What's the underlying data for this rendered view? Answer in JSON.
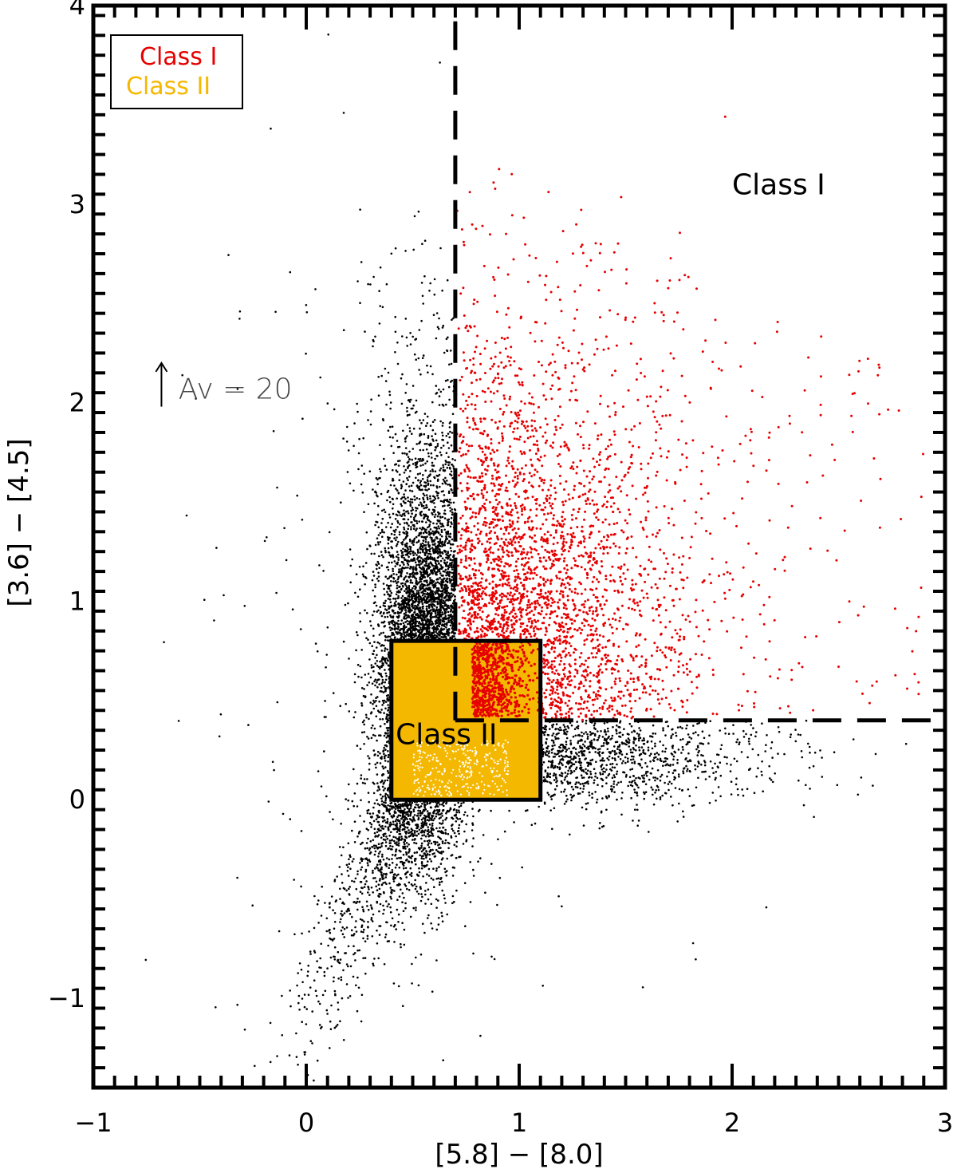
{
  "chart_data": {
    "type": "scatter",
    "title": "",
    "xlabel": "[5.8] − [8.0]",
    "ylabel": "[3.6] − [4.5]",
    "xlim": [
      -1,
      3
    ],
    "ylim": [
      -1.45,
      4
    ],
    "xticks": [
      -1,
      0,
      1,
      2,
      3
    ],
    "xtick_labels": [
      "−1",
      "0",
      "1",
      "2",
      "3"
    ],
    "yticks": [
      -1,
      0,
      1,
      2,
      3,
      4
    ],
    "ytick_labels": [
      "−1",
      "0",
      "1",
      "2",
      "3",
      "4"
    ],
    "x_minor_step": 0.1,
    "y_minor_step": 0.1,
    "grid": false,
    "legend_position": "top-left",
    "series": [
      {
        "name": "",
        "color": "#000000",
        "note": "all sources",
        "density": "high"
      },
      {
        "name": "Class I",
        "color": "#e60000"
      },
      {
        "name": "Class II",
        "color": "#f5b800"
      }
    ],
    "class_ii_box": {
      "x0": 0.4,
      "x1": 1.1,
      "y0": 0.0,
      "y1": 0.8,
      "fill": "#f5b800"
    },
    "class_i_boundary": {
      "x": 0.7,
      "y": 0.4,
      "style": "dashed"
    },
    "annotations": {
      "class_i_region": {
        "text": "Class I",
        "x": 2.0,
        "y": 3.05
      },
      "class_ii_region": {
        "text": "Class II",
        "x": 0.42,
        "y": 0.28
      },
      "extinction_label": {
        "text": "Av = 20",
        "x": -0.6,
        "y": 2.02
      },
      "extinction_arrow": {
        "x": -0.68,
        "y0": 1.98,
        "y1": 2.2,
        "color": "#000000"
      }
    }
  }
}
